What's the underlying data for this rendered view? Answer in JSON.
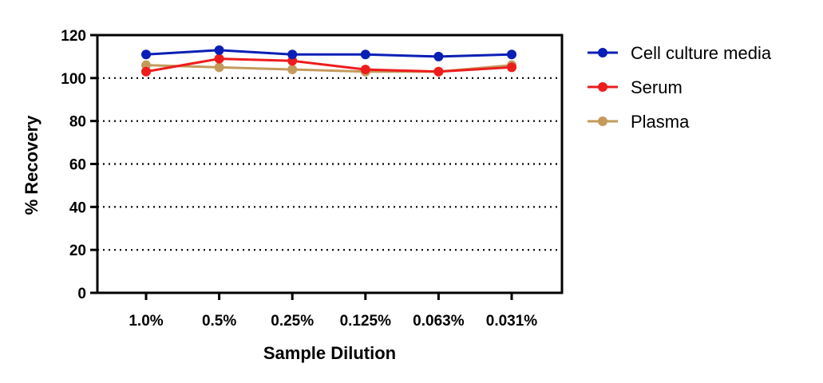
{
  "chart_data": {
    "type": "line",
    "title": "",
    "xlabel": "Sample Dilution",
    "ylabel": "% Recovery",
    "categories": [
      "1.0%",
      "0.5%",
      "0.25%",
      "0.125%",
      "0.063%",
      "0.031%"
    ],
    "ylim": [
      0,
      120
    ],
    "yticks": [
      0,
      20,
      40,
      60,
      80,
      100,
      120
    ],
    "grid": "dotted horizontal lines at major y ticks (20–100)",
    "legend_position": "right",
    "series": [
      {
        "name": "Cell culture media",
        "color": "#0a1fb5",
        "values": [
          111,
          113,
          111,
          111,
          110,
          111
        ]
      },
      {
        "name": "Serum",
        "color": "#ee1c1c",
        "values": [
          103,
          109,
          108,
          104,
          103,
          105
        ]
      },
      {
        "name": "Plasma",
        "color": "#c49a5c",
        "values": [
          106,
          105,
          104,
          103,
          103,
          106
        ]
      }
    ]
  }
}
